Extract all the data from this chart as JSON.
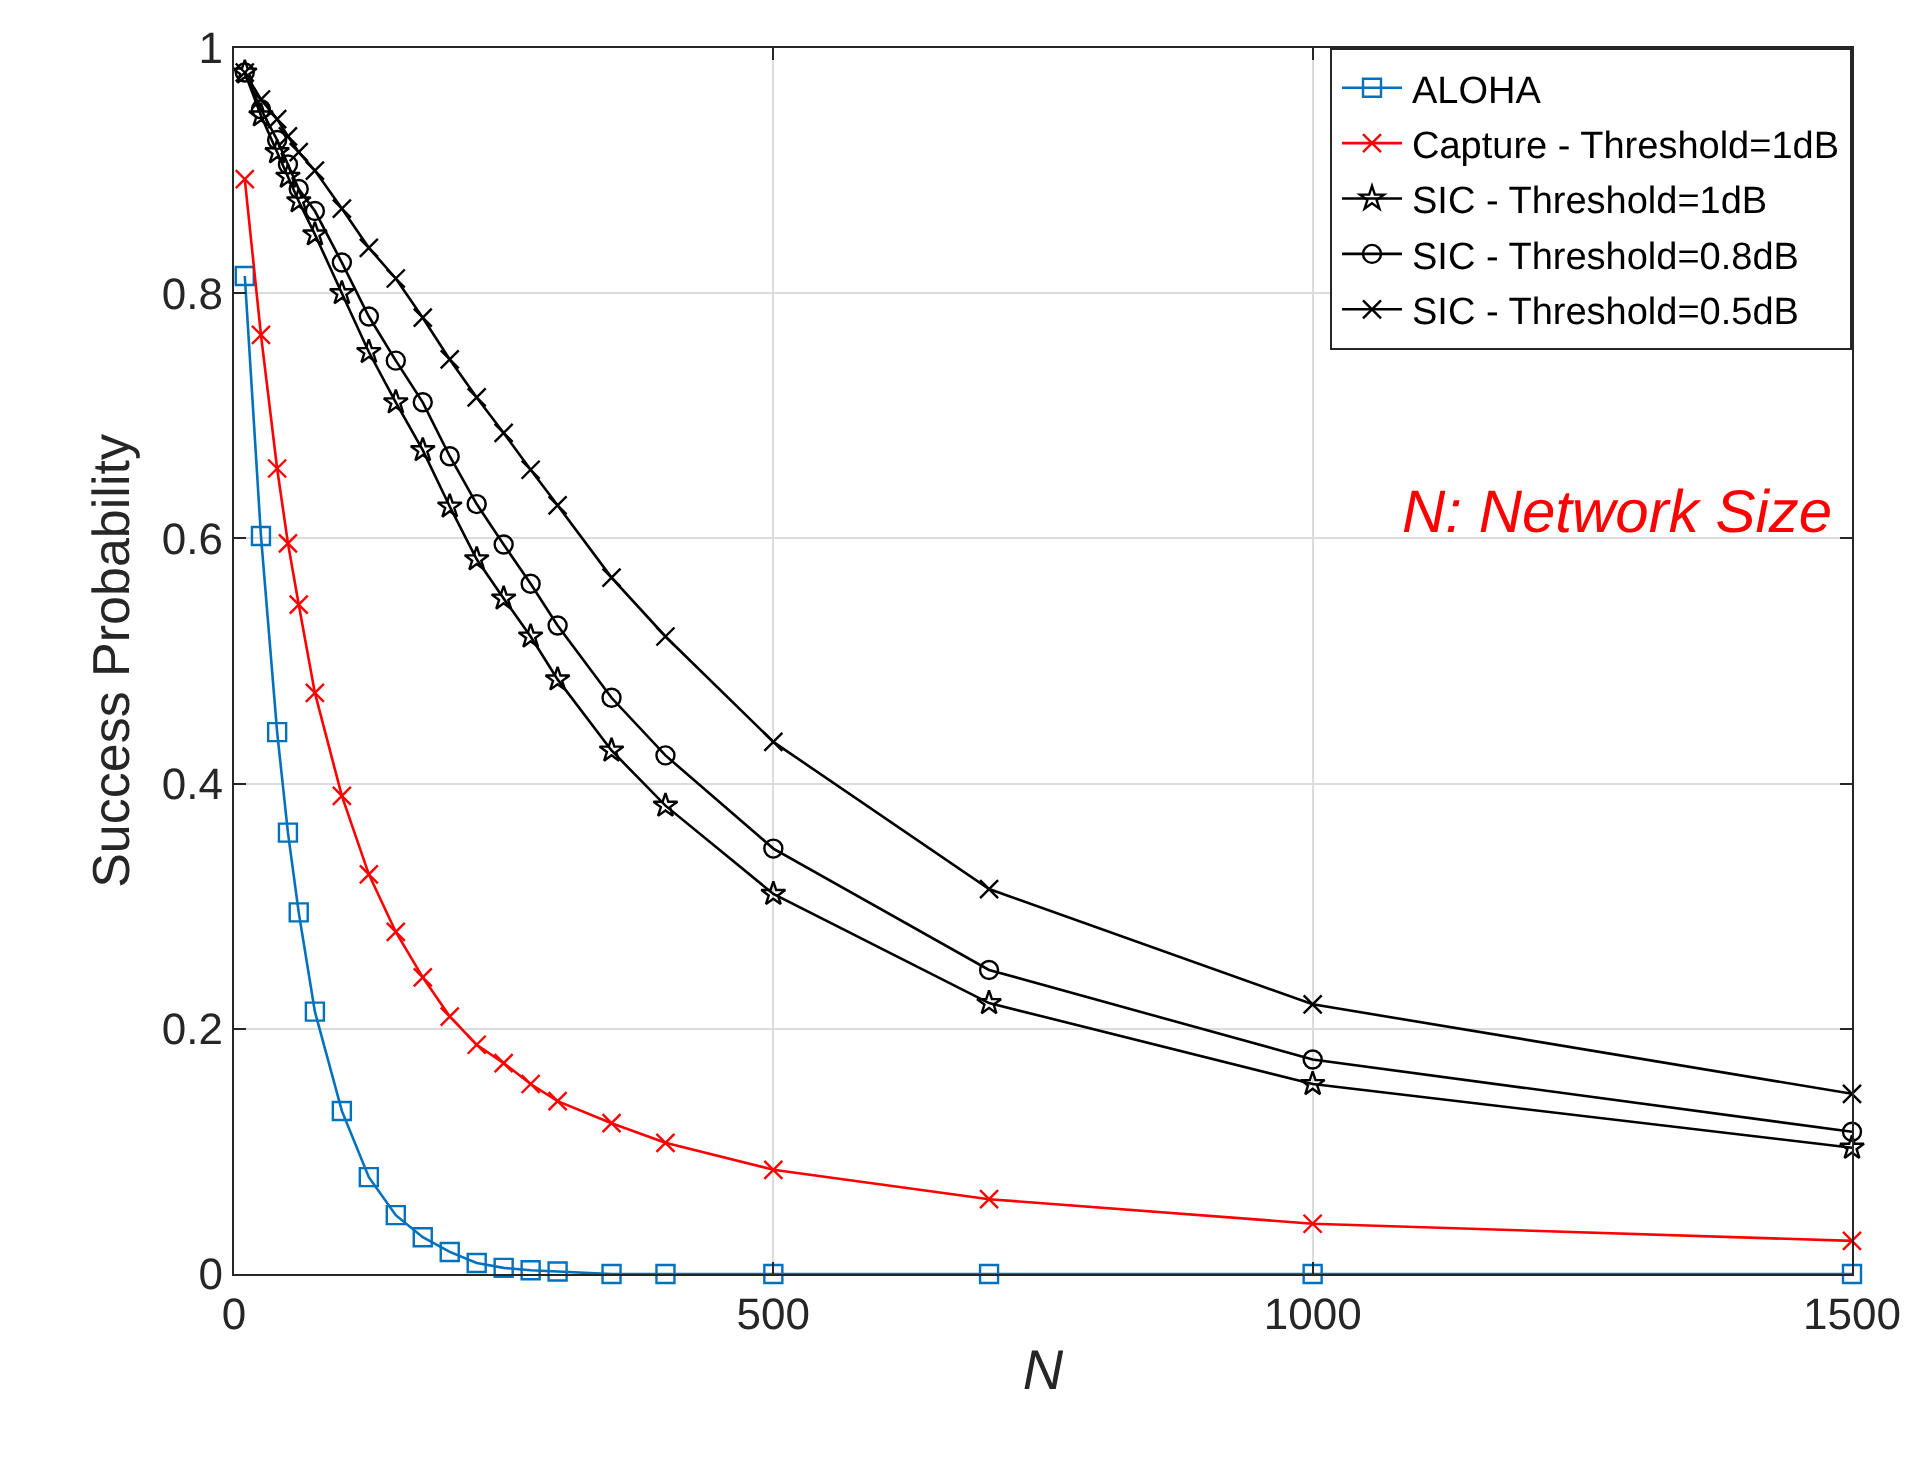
{
  "chart_data": {
    "type": "line",
    "xlabel": "N",
    "ylabel": "Success Probability",
    "xlim": [
      0,
      1500
    ],
    "xticks": [
      0,
      500,
      1000,
      1500
    ],
    "ylim": [
      0,
      1
    ],
    "yticks": [
      0,
      0.2,
      0.4,
      0.6,
      0.8,
      1
    ],
    "grid": true,
    "legend": "top right",
    "line_style": "solid",
    "annotations": [
      "N: Network Size"
    ],
    "x": [
      10,
      25,
      40,
      50,
      60,
      75,
      100,
      125,
      150,
      175,
      200,
      225,
      250,
      275,
      300,
      350,
      400,
      500,
      700,
      1000,
      1500
    ],
    "series": [
      {
        "name": "ALOHA",
        "color": "#0072bd",
        "marker": "square",
        "values": [
          0.814,
          0.602,
          0.442,
          0.36,
          0.295,
          0.214,
          0.133,
          0.079,
          0.048,
          0.03,
          0.018,
          0.009,
          0.005,
          0.003,
          0.002,
          0,
          0,
          0,
          0,
          0,
          0
        ]
      },
      {
        "name": "Capture - Threshold=1dB",
        "color": "#ff0000",
        "marker": "cross",
        "values": [
          0.893,
          0.766,
          0.657,
          0.596,
          0.546,
          0.474,
          0.39,
          0.326,
          0.279,
          0.242,
          0.21,
          0.187,
          0.172,
          0.155,
          0.141,
          0.123,
          0.107,
          0.085,
          0.061,
          0.041,
          0.027
        ]
      },
      {
        "name": "SIC - Threshold=1dB",
        "color": "#000000",
        "marker": "star",
        "values": [
          0.98,
          0.945,
          0.915,
          0.895,
          0.875,
          0.848,
          0.8,
          0.752,
          0.711,
          0.672,
          0.626,
          0.583,
          0.551,
          0.52,
          0.485,
          0.427,
          0.382,
          0.31,
          0.221,
          0.155,
          0.103
        ]
      },
      {
        "name": "SIC - Threshold=0.8dB",
        "color": "#000000",
        "marker": "circle",
        "values": [
          0.98,
          0.95,
          0.925,
          0.905,
          0.885,
          0.867,
          0.825,
          0.781,
          0.745,
          0.711,
          0.667,
          0.628,
          0.595,
          0.563,
          0.529,
          0.47,
          0.423,
          0.347,
          0.248,
          0.175,
          0.116
        ]
      },
      {
        "name": "SIC - Threshold=0.5dB",
        "color": "#000000",
        "marker": "cross",
        "values": [
          0.98,
          0.958,
          0.942,
          0.928,
          0.915,
          0.9,
          0.869,
          0.837,
          0.812,
          0.78,
          0.746,
          0.715,
          0.686,
          0.656,
          0.627,
          0.568,
          0.52,
          0.434,
          0.314,
          0.22,
          0.147
        ]
      }
    ]
  }
}
